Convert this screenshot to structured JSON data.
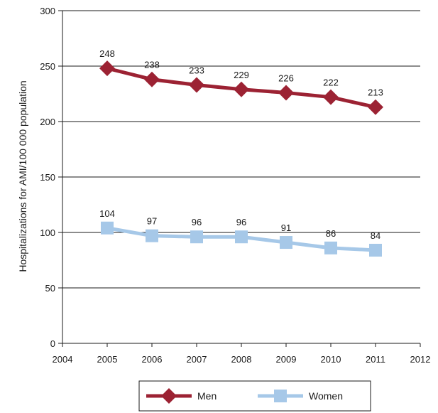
{
  "chart_data": {
    "type": "line",
    "ylabel": "Hospitalizations for AMI/100 000 population",
    "xlim": [
      2004,
      2012
    ],
    "ylim": [
      0,
      300
    ],
    "xticks": [
      "2004",
      "2005",
      "2006",
      "2007",
      "2008",
      "2009",
      "2010",
      "2011",
      "2012"
    ],
    "yticks": [
      "0",
      "50",
      "100",
      "150",
      "200",
      "250",
      "300"
    ],
    "grid": "horizontal",
    "legend_position": "bottom",
    "x": [
      2005,
      2006,
      2007,
      2008,
      2009,
      2010,
      2011
    ],
    "series": [
      {
        "name": "Men",
        "color": "#9c2233",
        "marker": "diamond",
        "values": [
          248,
          238,
          233,
          229,
          226,
          222,
          213
        ],
        "labels": [
          "248",
          "238",
          "233",
          "229",
          "226",
          "222",
          "213"
        ]
      },
      {
        "name": "Women",
        "color": "#a6c8e8",
        "marker": "square",
        "values": [
          104,
          97,
          96,
          96,
          91,
          86,
          84
        ],
        "labels": [
          "104",
          "97",
          "96",
          "96",
          "91",
          "86",
          "84"
        ]
      }
    ]
  }
}
